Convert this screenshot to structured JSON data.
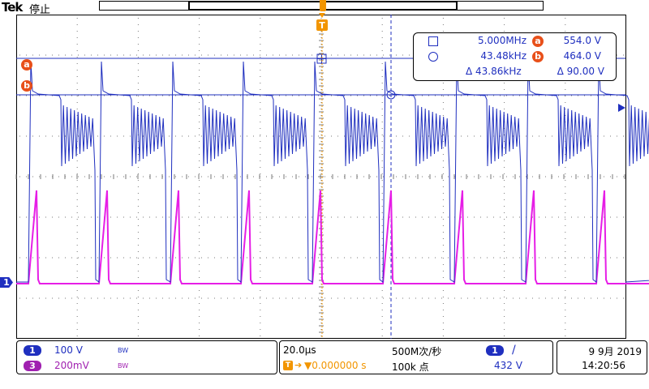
{
  "header": {
    "brand": "Tek",
    "run_state": "停止"
  },
  "markers": {
    "trigger_position_icon": "T",
    "cursor_a": "a",
    "cursor_b": "b",
    "channel1_ground": "1"
  },
  "cursor_readout": {
    "row1": {
      "freq": "5.000MHz",
      "badge": "a",
      "volt": "554.0 V"
    },
    "row2": {
      "freq": "43.48kHz",
      "badge": "b",
      "volt": "464.0 V"
    },
    "row3": {
      "delta_freq": "Δ 43.86kHz",
      "delta_volt": "Δ 90.00 V"
    }
  },
  "channels": {
    "ch1": {
      "number": "1",
      "scale": "100 V",
      "bw": "BW",
      "color": "#1f2fbf"
    },
    "ch3": {
      "number": "3",
      "scale": "200mV",
      "bw": "BW",
      "color": "#a020b0"
    }
  },
  "timebase": {
    "scale": "20.0µs",
    "trigger_delay": "▼0.000000 s",
    "sample_rate": "500M次/秒",
    "record_length": "100k 点"
  },
  "trigger": {
    "source": "1",
    "slope_icon": "rising-edge",
    "level": "432 V"
  },
  "datetime": {
    "date": "9 9月 2019",
    "time": "14:20:56"
  },
  "colors": {
    "ch1": "#1f2fbf",
    "ch3": "#e61ee6",
    "cursor": "#e8501a",
    "trigger": "#f29500",
    "grid": "#7a7a7a"
  }
}
